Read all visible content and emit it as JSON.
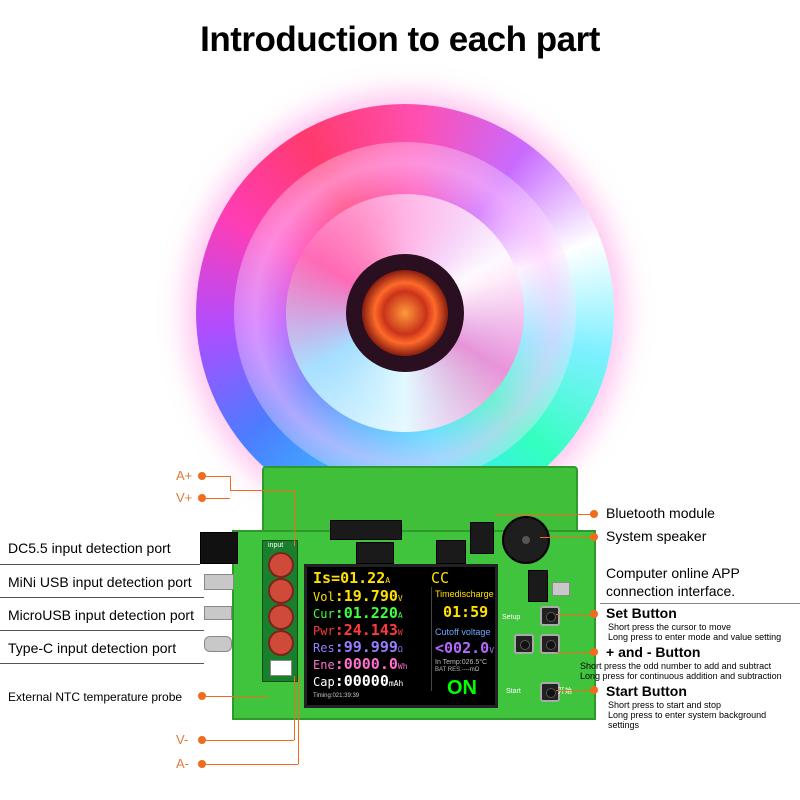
{
  "title": "Introduction to each part",
  "left_labels": {
    "a_plus": "A+",
    "v_plus": "V+",
    "dc55": "DC5.5 input detection port",
    "mini_usb": "MiNi USB input detection port",
    "micro_usb": "MicroUSB input detection port",
    "type_c": "Type-C input detection port",
    "ntc": "External NTC temperature probe",
    "v_minus": "V-",
    "a_minus": "A-"
  },
  "right_labels": {
    "bluetooth": "Bluetooth module",
    "speaker": "System speaker",
    "computer_line1": "Computer online APP",
    "computer_line2": "connection interface.",
    "set_title": "Set Button",
    "set_desc1": "Short press the cursor to move",
    "set_desc2": "Long press to enter mode and value setting",
    "pm_title": "+ and - Button",
    "pm_desc1": "Short press the odd number to add and subtract",
    "pm_desc2": "Long press for continuous addition and subtraction",
    "start_title": "Start Button",
    "start_desc1": "Short press to start and stop",
    "start_desc2": "Long press to enter system background",
    "start_desc3": "settings"
  },
  "board": {
    "input_label": "input",
    "setup_label": "Setup",
    "start_label": "Start",
    "start_cn": "开始"
  },
  "lcd": {
    "is_label": "Is",
    "is_value": "=01.22",
    "is_unit": "A",
    "mode": "CC",
    "vol_label": "Vol",
    "vol_value": ":19.790",
    "vol_unit": "V",
    "cur_label": "Cur",
    "cur_value": ":01.220",
    "cur_unit": "A",
    "pwr_label": "Pwr",
    "pwr_value": ":24.143",
    "pwr_unit": "W",
    "res_label": "Res",
    "res_value": ":99.999",
    "res_unit": "Ω",
    "ene_label": "Ene",
    "ene_value": ":0000.0",
    "ene_unit": "Wh",
    "cap_label": "Cap",
    "cap_value": ":00000",
    "cap_unit": "mAh",
    "timed_label": "Timedischarge",
    "timed_value": "01:59",
    "cutoff_label": "Cutoff voltage",
    "cutoff_value": "<002.0",
    "cutoff_unit": "V",
    "in_temp": "In Temp:026.5°C",
    "bat_res": "BAT RES:----mΩ",
    "state": "ON",
    "timing": "Timing:021:39:39"
  },
  "colors": {
    "callout": "#f26a1b",
    "board": "#41c43d"
  }
}
